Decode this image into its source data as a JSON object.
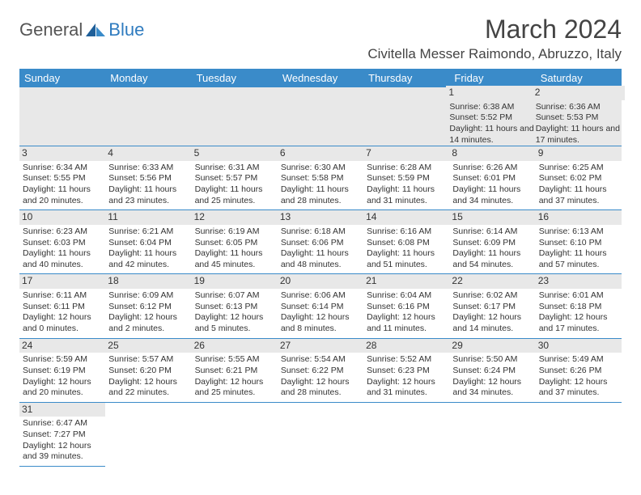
{
  "brand": {
    "name1": "General",
    "name2": "Blue"
  },
  "title": "March 2024",
  "location": "Civitella Messer Raimondo, Abruzzo, Italy",
  "colors": {
    "header_bg": "#3a8bc9",
    "header_fg": "#ffffff",
    "daybar_bg": "#e8e8e8",
    "rule": "#3a8bc9",
    "text": "#333333",
    "bg": "#ffffff"
  },
  "fonts": {
    "title_size": 32,
    "location_size": 17,
    "dayheader_size": 13,
    "cell_size": 10.5
  },
  "day_headers": [
    "Sunday",
    "Monday",
    "Tuesday",
    "Wednesday",
    "Thursday",
    "Friday",
    "Saturday"
  ],
  "weeks": [
    [
      null,
      null,
      null,
      null,
      null,
      {
        "n": "1",
        "sunrise": "6:38 AM",
        "sunset": "5:52 PM",
        "daylight": "11 hours and 14 minutes."
      },
      {
        "n": "2",
        "sunrise": "6:36 AM",
        "sunset": "5:53 PM",
        "daylight": "11 hours and 17 minutes."
      }
    ],
    [
      {
        "n": "3",
        "sunrise": "6:34 AM",
        "sunset": "5:55 PM",
        "daylight": "11 hours and 20 minutes."
      },
      {
        "n": "4",
        "sunrise": "6:33 AM",
        "sunset": "5:56 PM",
        "daylight": "11 hours and 23 minutes."
      },
      {
        "n": "5",
        "sunrise": "6:31 AM",
        "sunset": "5:57 PM",
        "daylight": "11 hours and 25 minutes."
      },
      {
        "n": "6",
        "sunrise": "6:30 AM",
        "sunset": "5:58 PM",
        "daylight": "11 hours and 28 minutes."
      },
      {
        "n": "7",
        "sunrise": "6:28 AM",
        "sunset": "5:59 PM",
        "daylight": "11 hours and 31 minutes."
      },
      {
        "n": "8",
        "sunrise": "6:26 AM",
        "sunset": "6:01 PM",
        "daylight": "11 hours and 34 minutes."
      },
      {
        "n": "9",
        "sunrise": "6:25 AM",
        "sunset": "6:02 PM",
        "daylight": "11 hours and 37 minutes."
      }
    ],
    [
      {
        "n": "10",
        "sunrise": "6:23 AM",
        "sunset": "6:03 PM",
        "daylight": "11 hours and 40 minutes."
      },
      {
        "n": "11",
        "sunrise": "6:21 AM",
        "sunset": "6:04 PM",
        "daylight": "11 hours and 42 minutes."
      },
      {
        "n": "12",
        "sunrise": "6:19 AM",
        "sunset": "6:05 PM",
        "daylight": "11 hours and 45 minutes."
      },
      {
        "n": "13",
        "sunrise": "6:18 AM",
        "sunset": "6:06 PM",
        "daylight": "11 hours and 48 minutes."
      },
      {
        "n": "14",
        "sunrise": "6:16 AM",
        "sunset": "6:08 PM",
        "daylight": "11 hours and 51 minutes."
      },
      {
        "n": "15",
        "sunrise": "6:14 AM",
        "sunset": "6:09 PM",
        "daylight": "11 hours and 54 minutes."
      },
      {
        "n": "16",
        "sunrise": "6:13 AM",
        "sunset": "6:10 PM",
        "daylight": "11 hours and 57 minutes."
      }
    ],
    [
      {
        "n": "17",
        "sunrise": "6:11 AM",
        "sunset": "6:11 PM",
        "daylight": "12 hours and 0 minutes."
      },
      {
        "n": "18",
        "sunrise": "6:09 AM",
        "sunset": "6:12 PM",
        "daylight": "12 hours and 2 minutes."
      },
      {
        "n": "19",
        "sunrise": "6:07 AM",
        "sunset": "6:13 PM",
        "daylight": "12 hours and 5 minutes."
      },
      {
        "n": "20",
        "sunrise": "6:06 AM",
        "sunset": "6:14 PM",
        "daylight": "12 hours and 8 minutes."
      },
      {
        "n": "21",
        "sunrise": "6:04 AM",
        "sunset": "6:16 PM",
        "daylight": "12 hours and 11 minutes."
      },
      {
        "n": "22",
        "sunrise": "6:02 AM",
        "sunset": "6:17 PM",
        "daylight": "12 hours and 14 minutes."
      },
      {
        "n": "23",
        "sunrise": "6:01 AM",
        "sunset": "6:18 PM",
        "daylight": "12 hours and 17 minutes."
      }
    ],
    [
      {
        "n": "24",
        "sunrise": "5:59 AM",
        "sunset": "6:19 PM",
        "daylight": "12 hours and 20 minutes."
      },
      {
        "n": "25",
        "sunrise": "5:57 AM",
        "sunset": "6:20 PM",
        "daylight": "12 hours and 22 minutes."
      },
      {
        "n": "26",
        "sunrise": "5:55 AM",
        "sunset": "6:21 PM",
        "daylight": "12 hours and 25 minutes."
      },
      {
        "n": "27",
        "sunrise": "5:54 AM",
        "sunset": "6:22 PM",
        "daylight": "12 hours and 28 minutes."
      },
      {
        "n": "28",
        "sunrise": "5:52 AM",
        "sunset": "6:23 PM",
        "daylight": "12 hours and 31 minutes."
      },
      {
        "n": "29",
        "sunrise": "5:50 AM",
        "sunset": "6:24 PM",
        "daylight": "12 hours and 34 minutes."
      },
      {
        "n": "30",
        "sunrise": "5:49 AM",
        "sunset": "6:26 PM",
        "daylight": "12 hours and 37 minutes."
      }
    ],
    [
      {
        "n": "31",
        "sunrise": "6:47 AM",
        "sunset": "7:27 PM",
        "daylight": "12 hours and 39 minutes."
      },
      null,
      null,
      null,
      null,
      null,
      null
    ]
  ],
  "labels": {
    "sunrise": "Sunrise: ",
    "sunset": "Sunset: ",
    "daylight": "Daylight: "
  }
}
